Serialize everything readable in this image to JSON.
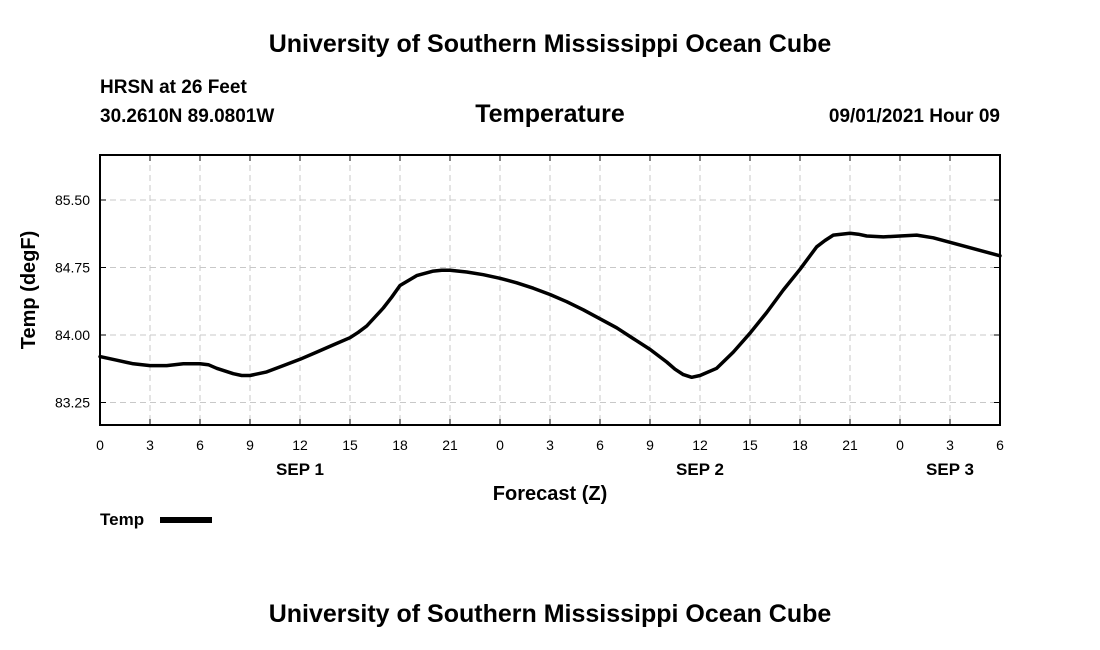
{
  "header": {
    "title_top": "University of Southern Mississippi Ocean Cube",
    "station_name": "HRSN at 26 Feet",
    "station_coords": "30.2610N  89.0801W",
    "chart_title": "Temperature",
    "datetime": "09/01/2021 Hour 09"
  },
  "footer": {
    "title_bottom": "University of Southern Mississippi Ocean Cube"
  },
  "colors": {
    "line": "#000000",
    "grid": "#c8c8c8",
    "axis": "#000000"
  },
  "chart_data": {
    "type": "line",
    "title": "Temperature",
    "xlabel": "Forecast (Z)",
    "ylabel": "Temp (degF)",
    "xlim": [
      0,
      54
    ],
    "ylim": [
      83.0,
      86.0
    ],
    "x_ticks": [
      0,
      3,
      6,
      9,
      12,
      15,
      18,
      21,
      24,
      27,
      30,
      33,
      36,
      39,
      42,
      45,
      48,
      51,
      54
    ],
    "x_tick_labels": [
      "0",
      "3",
      "6",
      "9",
      "12",
      "15",
      "18",
      "21",
      "0",
      "3",
      "6",
      "9",
      "12",
      "15",
      "18",
      "21",
      "0",
      "3",
      "6"
    ],
    "y_ticks": [
      83.25,
      84.0,
      84.75,
      85.5
    ],
    "y_tick_labels": [
      "83.25",
      "84.00",
      "84.75",
      "85.50"
    ],
    "day_labels": [
      {
        "x": 12,
        "label": "SEP 1"
      },
      {
        "x": 36,
        "label": "SEP 2"
      },
      {
        "x": 51,
        "label": "SEP 3"
      }
    ],
    "grid": true,
    "legend_position": "bottom-left",
    "series": [
      {
        "name": "Temp",
        "x": [
          0,
          1,
          2,
          3,
          4,
          5,
          6,
          6.5,
          7,
          8,
          8.5,
          9,
          10,
          11,
          12,
          13,
          14,
          15,
          15.5,
          16,
          17,
          17.5,
          18,
          19,
          20,
          20.5,
          21,
          22,
          23,
          24,
          25,
          26,
          27,
          28,
          29,
          30,
          31,
          32,
          33,
          34,
          34.5,
          35,
          35.5,
          36,
          37,
          38,
          39,
          40,
          41,
          42,
          43,
          43.5,
          44,
          45,
          45.5,
          46,
          47,
          48,
          49,
          50,
          51,
          52,
          53,
          54
        ],
        "values": [
          83.76,
          83.72,
          83.68,
          83.66,
          83.66,
          83.68,
          83.68,
          83.67,
          83.63,
          83.57,
          83.55,
          83.55,
          83.59,
          83.66,
          83.73,
          83.81,
          83.89,
          83.97,
          84.03,
          84.1,
          84.3,
          84.42,
          84.55,
          84.66,
          84.71,
          84.72,
          84.72,
          84.7,
          84.67,
          84.63,
          84.58,
          84.52,
          84.45,
          84.37,
          84.28,
          84.18,
          84.08,
          83.96,
          83.84,
          83.7,
          83.62,
          83.56,
          83.53,
          83.55,
          83.63,
          83.81,
          84.02,
          84.25,
          84.5,
          84.73,
          84.98,
          85.05,
          85.11,
          85.13,
          85.12,
          85.1,
          85.09,
          85.1,
          85.11,
          85.08,
          85.03,
          84.98,
          84.93,
          84.88
        ]
      }
    ]
  }
}
